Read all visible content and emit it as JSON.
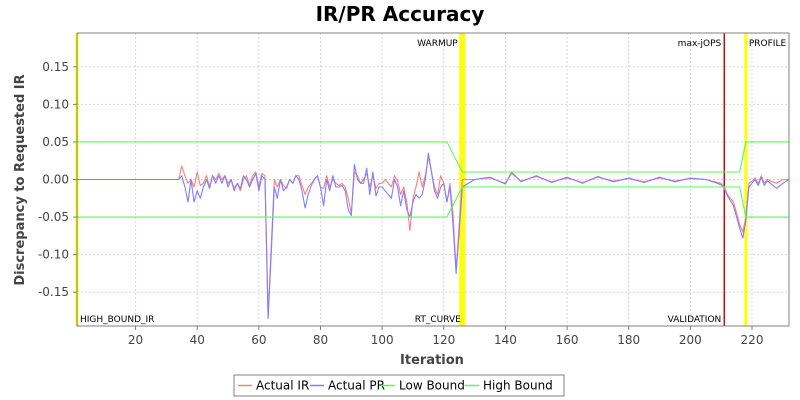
{
  "chart_data": {
    "type": "line",
    "title": "IR/PR Accuracy",
    "xlabel": "Iteration",
    "ylabel": "Discrepancy to Requested IR",
    "xlim": [
      1,
      232
    ],
    "ylim": [
      -0.195,
      0.195
    ],
    "xticks": [
      20,
      40,
      60,
      80,
      100,
      120,
      140,
      160,
      180,
      200,
      220
    ],
    "yticks": [
      -0.15,
      -0.1,
      -0.05,
      0.0,
      0.05,
      0.1,
      0.15
    ],
    "ytick_labels": [
      "-0.15",
      "-0.10",
      "-0.05",
      "0.00",
      "0.05",
      "0.10",
      "0.15"
    ],
    "grid": true,
    "legend": "bottom",
    "markers": [
      {
        "label": "HIGH_BOUND_IR",
        "x": 1,
        "color": "#ffff00",
        "label_pos": "bottom"
      },
      {
        "label": "WARMUP",
        "x": 125.5,
        "color": "#ffff00",
        "label_pos": "top"
      },
      {
        "label": "RT_CURVE",
        "x": 126.5,
        "color": "#ffff00",
        "label_pos": "bottom"
      },
      {
        "label": "max-jOPS",
        "x": 211,
        "color": "#cc0000",
        "label_pos": "top"
      },
      {
        "label": "VALIDATION",
        "x": 211,
        "color": "#cc0000",
        "label_pos": "bottom"
      },
      {
        "label": "PROFILE",
        "x": 218,
        "color": "#ffff00",
        "label_pos": "top"
      }
    ],
    "series": [
      {
        "name": "Actual IR",
        "color": "#ff7f7f",
        "x": [
          1,
          34,
          35,
          36,
          37,
          38,
          39,
          40,
          41,
          42,
          43,
          44,
          45,
          46,
          47,
          48,
          49,
          50,
          51,
          52,
          53,
          54,
          55,
          56,
          57,
          58,
          59,
          60,
          61,
          62,
          63,
          64,
          65,
          66,
          67,
          68,
          69,
          70,
          71,
          72,
          73,
          74,
          75,
          76,
          77,
          78,
          79,
          80,
          81,
          82,
          83,
          84,
          85,
          86,
          87,
          88,
          89,
          90,
          91,
          92,
          93,
          94,
          95,
          96,
          97,
          98,
          99,
          100,
          101,
          102,
          103,
          104,
          105,
          106,
          107,
          108,
          109,
          110,
          111,
          112,
          113,
          114,
          115,
          116,
          117,
          118,
          119,
          120,
          121,
          122,
          123,
          124,
          125,
          126,
          130,
          135,
          140,
          142,
          145,
          150,
          155,
          160,
          165,
          170,
          175,
          180,
          185,
          190,
          195,
          200,
          205,
          208,
          210,
          211,
          212,
          213,
          214,
          215,
          216,
          217,
          218,
          219,
          220,
          221,
          222,
          223,
          224,
          225,
          226,
          228,
          230,
          232
        ],
        "y": [
          0.0,
          0.0,
          0.018,
          0.005,
          -0.005,
          0.0,
          -0.01,
          0.01,
          -0.008,
          -0.005,
          0.005,
          -0.01,
          0.005,
          0.0,
          0.008,
          0.0,
          0.005,
          -0.005,
          0.0,
          -0.012,
          -0.005,
          -0.015,
          0.0,
          0.005,
          -0.008,
          0.005,
          0.01,
          -0.01,
          0.008,
          0.005,
          -0.182,
          -0.09,
          0.0,
          -0.01,
          0.0,
          -0.008,
          -0.012,
          0.0,
          -0.005,
          0.005,
          0.005,
          -0.008,
          -0.02,
          -0.01,
          -0.005,
          0.0,
          0.005,
          -0.01,
          -0.012,
          0.005,
          -0.01,
          0.0,
          -0.005,
          -0.008,
          -0.005,
          -0.01,
          -0.025,
          -0.045,
          0.01,
          0.005,
          -0.005,
          0.0,
          0.008,
          -0.01,
          0.005,
          -0.012,
          -0.005,
          -0.005,
          0.0,
          -0.005,
          -0.01,
          0.005,
          -0.002,
          -0.02,
          -0.01,
          -0.03,
          -0.068,
          -0.025,
          -0.01,
          0.01,
          -0.01,
          0.005,
          0.03,
          0.01,
          -0.01,
          -0.02,
          0.005,
          -0.005,
          -0.03,
          -0.005,
          -0.045,
          -0.12,
          -0.06,
          0.0,
          0.0,
          0.002,
          -0.005,
          0.008,
          -0.002,
          0.004,
          -0.003,
          0.002,
          -0.004,
          0.003,
          -0.002,
          0.001,
          -0.003,
          0.002,
          -0.002,
          0.001,
          0.0,
          -0.003,
          -0.005,
          -0.01,
          -0.02,
          -0.025,
          -0.03,
          -0.045,
          -0.06,
          -0.07,
          -0.05,
          -0.005,
          -0.002,
          0.002,
          -0.005,
          0.005,
          -0.005,
          0.0,
          -0.002,
          -0.005,
          0.0,
          0.0
        ]
      },
      {
        "name": "Actual PR",
        "color": "#7f7fff",
        "x": [
          1,
          34,
          35,
          36,
          37,
          38,
          39,
          40,
          41,
          42,
          43,
          44,
          45,
          46,
          47,
          48,
          49,
          50,
          51,
          52,
          53,
          54,
          55,
          56,
          57,
          58,
          59,
          60,
          61,
          62,
          63,
          64,
          65,
          66,
          67,
          68,
          69,
          70,
          71,
          72,
          73,
          74,
          75,
          76,
          77,
          78,
          79,
          80,
          81,
          82,
          83,
          84,
          85,
          86,
          87,
          88,
          89,
          90,
          91,
          92,
          93,
          94,
          95,
          96,
          97,
          98,
          99,
          100,
          101,
          102,
          103,
          104,
          105,
          106,
          107,
          108,
          109,
          110,
          111,
          112,
          113,
          114,
          115,
          116,
          117,
          118,
          119,
          120,
          121,
          122,
          123,
          124,
          125,
          126,
          130,
          135,
          140,
          142,
          145,
          150,
          155,
          160,
          165,
          170,
          175,
          180,
          185,
          190,
          195,
          200,
          205,
          208,
          210,
          211,
          212,
          213,
          214,
          215,
          216,
          217,
          218,
          219,
          220,
          221,
          222,
          223,
          224,
          225,
          226,
          228,
          230,
          232
        ],
        "y": [
          0.0,
          0.0,
          0.005,
          -0.01,
          -0.03,
          0.0,
          -0.03,
          -0.015,
          -0.025,
          -0.01,
          0.0,
          -0.012,
          0.005,
          -0.005,
          0.005,
          -0.005,
          0.005,
          -0.01,
          0.0,
          -0.015,
          -0.005,
          -0.012,
          0.005,
          0.0,
          -0.01,
          0.0,
          0.008,
          -0.015,
          0.005,
          0.0,
          -0.185,
          -0.1,
          -0.01,
          -0.025,
          0.0,
          -0.015,
          -0.01,
          0.0,
          -0.005,
          0.005,
          0.0,
          -0.015,
          -0.038,
          -0.02,
          -0.008,
          0.0,
          0.005,
          -0.01,
          -0.035,
          0.0,
          -0.015,
          0.005,
          -0.01,
          -0.01,
          -0.008,
          -0.015,
          -0.04,
          -0.048,
          0.02,
          0.0,
          -0.005,
          -0.005,
          0.015,
          -0.02,
          0.01,
          -0.022,
          -0.01,
          -0.01,
          -0.015,
          -0.02,
          -0.025,
          0.0,
          -0.01,
          -0.035,
          -0.015,
          -0.04,
          -0.05,
          -0.03,
          -0.02,
          -0.025,
          -0.02,
          0.0,
          0.035,
          0.01,
          -0.015,
          -0.025,
          -0.01,
          -0.005,
          -0.03,
          -0.01,
          -0.06,
          -0.125,
          -0.07,
          -0.01,
          0.0,
          0.003,
          -0.006,
          0.01,
          -0.003,
          0.005,
          -0.004,
          0.003,
          -0.005,
          0.004,
          -0.003,
          0.002,
          -0.004,
          0.003,
          -0.003,
          0.002,
          0.0,
          -0.004,
          -0.007,
          -0.012,
          -0.022,
          -0.028,
          -0.035,
          -0.05,
          -0.065,
          -0.078,
          -0.055,
          -0.01,
          -0.005,
          0.0,
          -0.008,
          0.003,
          -0.008,
          -0.002,
          -0.005,
          -0.012,
          -0.005,
          0.0
        ]
      },
      {
        "name": "Low Bound",
        "color": "#55ff55",
        "x": [
          1,
          121,
          126,
          216,
          218,
          232
        ],
        "y": [
          -0.05,
          -0.05,
          -0.01,
          -0.01,
          -0.05,
          -0.05
        ]
      },
      {
        "name": "High Bound",
        "color": "#55ff55",
        "x": [
          1,
          121,
          126,
          216,
          218,
          232
        ],
        "y": [
          0.05,
          0.05,
          0.01,
          0.01,
          0.05,
          0.05
        ]
      }
    ]
  }
}
